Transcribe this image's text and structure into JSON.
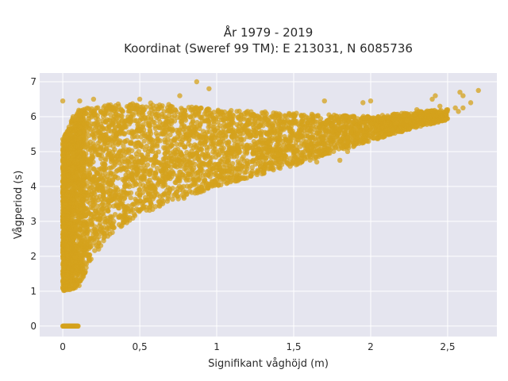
{
  "chart_data": {
    "type": "scatter",
    "title_line1": "År 1979 - 2019",
    "title_line2": "Koordinat (Sweref 99 TM): E 213031, N 6085736",
    "xlabel": "Signifikant våghöjd (m)",
    "ylabel": "Vågperiod (s)",
    "xlim": [
      -0.15,
      2.82
    ],
    "ylim": [
      -0.3,
      7.25
    ],
    "x_ticks": [
      0,
      0.5,
      1,
      1.5,
      2,
      2.5
    ],
    "x_tick_labels": [
      "0",
      "0,5",
      "1",
      "1,5",
      "2",
      "2,5"
    ],
    "y_ticks": [
      0,
      1,
      2,
      3,
      4,
      5,
      6,
      7
    ],
    "y_tick_labels": [
      "0",
      "1",
      "2",
      "3",
      "4",
      "5",
      "6",
      "7"
    ],
    "grid": true,
    "plot_background": "#e5e5ef",
    "grid_color": "#ffffff",
    "marker_color": "#d4a21c",
    "marker_opacity": 0.75,
    "envelope": {
      "upper_y": [
        [
          0.0,
          5.3
        ],
        [
          0.05,
          5.9
        ],
        [
          0.1,
          6.2
        ],
        [
          0.3,
          6.35
        ],
        [
          0.6,
          6.4
        ],
        [
          1.0,
          6.2
        ],
        [
          1.5,
          6.1
        ],
        [
          2.0,
          6.0
        ],
        [
          2.3,
          6.15
        ],
        [
          2.5,
          6.2
        ]
      ],
      "lower_y": [
        [
          0.0,
          1.0
        ],
        [
          0.1,
          1.1
        ],
        [
          0.2,
          2.0
        ],
        [
          0.3,
          2.6
        ],
        [
          0.5,
          3.2
        ],
        [
          0.75,
          3.6
        ],
        [
          1.0,
          4.0
        ],
        [
          1.5,
          4.6
        ],
        [
          2.0,
          5.3
        ],
        [
          2.3,
          5.7
        ],
        [
          2.5,
          5.9
        ]
      ]
    },
    "zero_cluster": {
      "x_range": [
        0.0,
        0.1
      ],
      "y": 0
    },
    "outliers": [
      [
        0.0,
        6.45
      ],
      [
        0.0,
        5.35
      ],
      [
        0.0,
        4.9
      ],
      [
        0.0,
        4.75
      ],
      [
        0.0,
        4.5
      ],
      [
        0.0,
        4.0
      ],
      [
        0.11,
        6.45
      ],
      [
        0.2,
        6.5
      ],
      [
        0.5,
        6.5
      ],
      [
        0.76,
        6.6
      ],
      [
        0.87,
        7.0
      ],
      [
        0.95,
        6.8
      ],
      [
        1.7,
        6.45
      ],
      [
        1.95,
        6.4
      ],
      [
        2.0,
        6.45
      ],
      [
        2.4,
        6.5
      ],
      [
        2.45,
        6.3
      ],
      [
        2.5,
        6.2
      ],
      [
        2.55,
        6.25
      ],
      [
        2.6,
        6.6
      ],
      [
        2.7,
        6.75
      ],
      [
        2.65,
        6.4
      ],
      [
        2.42,
        6.6
      ],
      [
        2.58,
        6.7
      ],
      [
        2.57,
        6.15
      ],
      [
        2.6,
        6.25
      ],
      [
        2.35,
        6.05
      ],
      [
        2.3,
        6.2
      ],
      [
        1.3,
        5.2
      ],
      [
        1.4,
        4.9
      ],
      [
        1.5,
        5.0
      ],
      [
        1.6,
        4.95
      ],
      [
        1.75,
        5.1
      ],
      [
        1.8,
        4.75
      ],
      [
        1.85,
        5.0
      ],
      [
        1.55,
        4.9
      ],
      [
        1.2,
        4.6
      ],
      [
        1.45,
        4.85
      ],
      [
        1.65,
        4.7
      ],
      [
        1.0,
        4.2
      ],
      [
        0.9,
        3.9
      ]
    ]
  }
}
